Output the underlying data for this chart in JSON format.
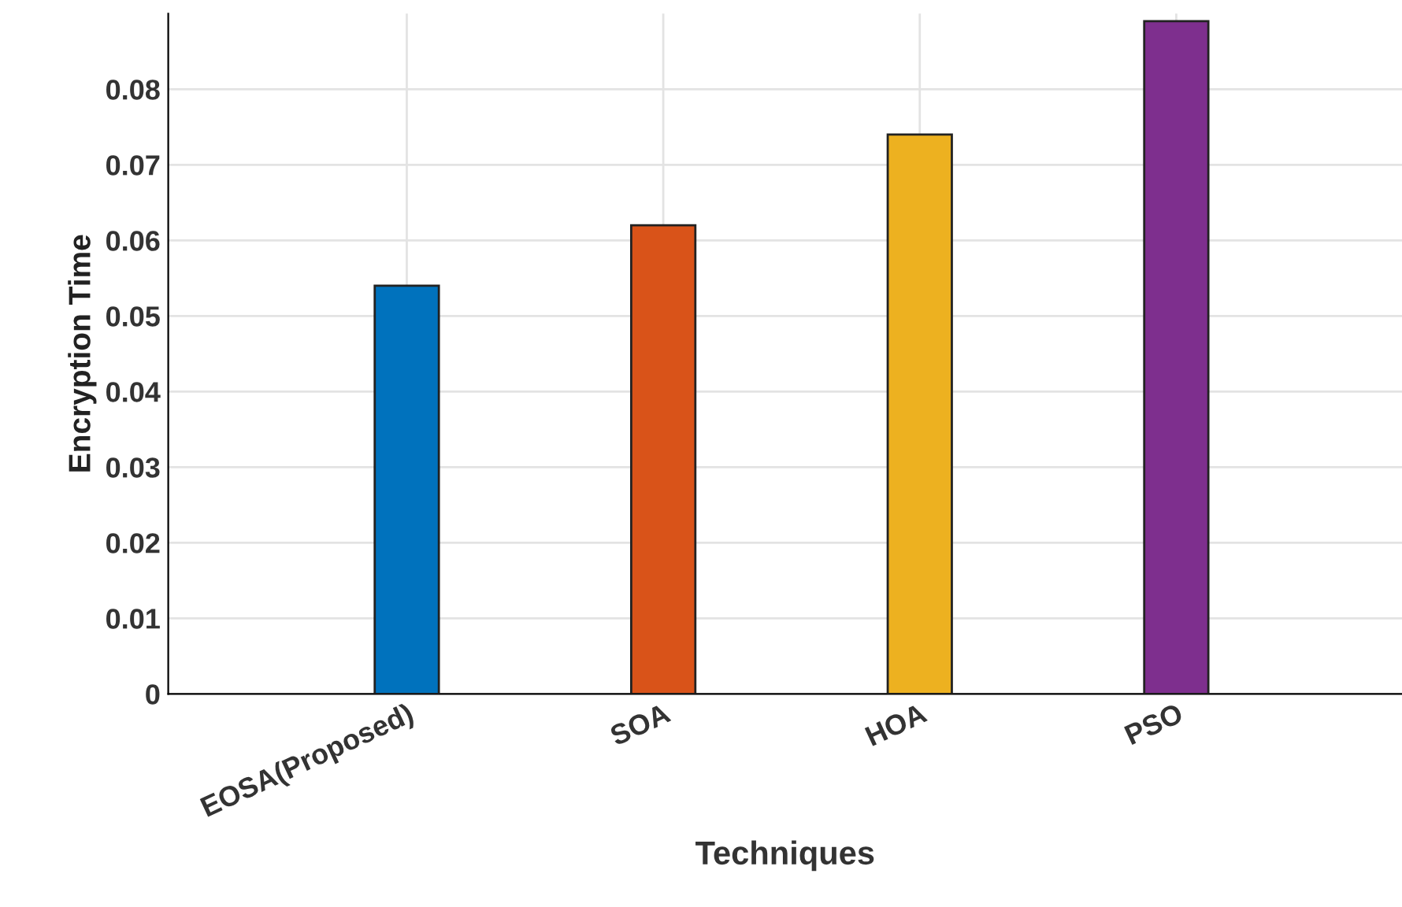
{
  "chart_data": {
    "type": "bar",
    "xlabel": "Techniques",
    "ylabel": "Encryption Time",
    "categories": [
      "EOSA(Proposed)",
      "SOA",
      "HOA",
      "PSO"
    ],
    "values": [
      0.054,
      0.062,
      0.074,
      0.089
    ],
    "colors": [
      "#0072bd",
      "#d95319",
      "#edb120",
      "#7e2f8e"
    ],
    "ylim": [
      0,
      0.09
    ],
    "yticks": [
      0,
      0.01,
      0.02,
      0.03,
      0.04,
      0.05,
      0.06,
      0.07,
      0.08
    ],
    "grid": true
  }
}
